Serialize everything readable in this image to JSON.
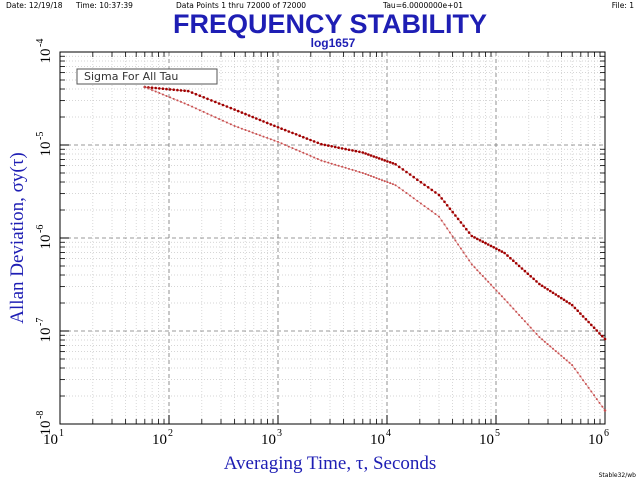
{
  "header": {
    "date": "Date: 12/19/18",
    "time": "Time: 10:37:39",
    "data_points": "Data Points 1 thru 72000 of 72000",
    "tau": "Tau=6.0000000e+01",
    "file": "File: 1"
  },
  "footer": "Stable32/wb",
  "chart_data": {
    "type": "scatter",
    "title": "FREQUENCY STABILITY",
    "subtitle": "log1657",
    "xlabel": "Averaging Time, τ, Seconds",
    "ylabel": "Allan Deviation, σy(τ)",
    "legend": "Sigma For All Tau",
    "legend_position": "top-left",
    "x_scale": "log",
    "y_scale": "log",
    "xlim": [
      10,
      1000000
    ],
    "ylim": [
      1e-08,
      0.0001
    ],
    "grid": true,
    "x_ticks": [
      "10",
      "10",
      "10",
      "10",
      "10",
      "10"
    ],
    "x_tick_exponents": [
      "1",
      "2",
      "3",
      "4",
      "5",
      "6"
    ],
    "y_ticks": [
      "10",
      "10",
      "10",
      "10",
      "10"
    ],
    "y_tick_exponents": [
      "-8",
      "-7",
      "-6",
      "-5",
      "-4"
    ],
    "colors": {
      "upper": "#a00000",
      "lower": "#c85050",
      "axis_label": "#1e1eb4"
    },
    "series": [
      {
        "x": [
          60,
          150,
          400,
          1000,
          2500,
          6000,
          12000,
          30000,
          60000,
          120000,
          250000,
          500000,
          1000000
        ],
        "values": [
          4.2e-05,
          3.8e-05,
          2.4e-05,
          1.55e-05,
          1.02e-05,
          8.3e-06,
          6.2e-06,
          2.9e-06,
          1.05e-06,
          6.9e-07,
          3.2e-07,
          1.9e-07,
          8.2e-08
        ]
      },
      {
        "x": [
          60,
          150,
          400,
          1000,
          2500,
          6000,
          12000,
          30000,
          60000,
          120000,
          250000,
          500000,
          1000000
        ],
        "values": [
          4.2e-05,
          2.7e-05,
          1.6e-05,
          1.08e-05,
          6.8e-06,
          5e-06,
          3.7e-06,
          1.7e-06,
          5.2e-07,
          2.2e-07,
          8.6e-08,
          4.3e-08,
          1.4e-08
        ]
      }
    ]
  }
}
